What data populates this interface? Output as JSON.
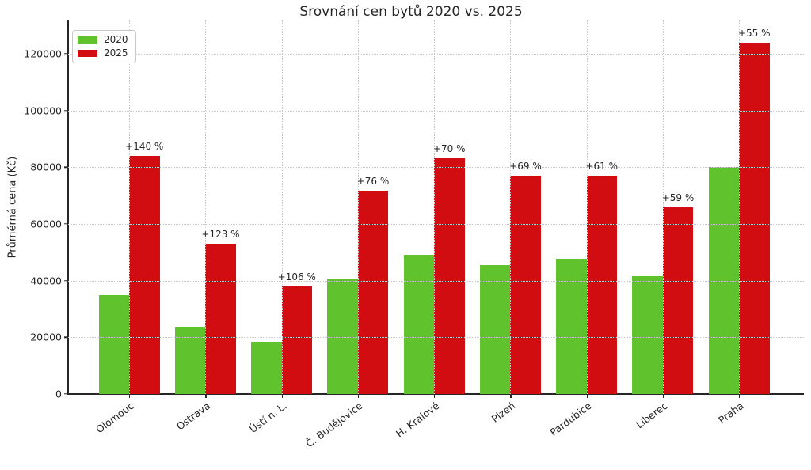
{
  "figure": {
    "title": "Srovnání cen bytů 2020 vs. 2025",
    "ylabel": "Průměrná cena (Kč)"
  },
  "legend": {
    "items": [
      {
        "label": "2020",
        "color": "#60c22d"
      },
      {
        "label": "2025",
        "color": "#d10d11"
      }
    ]
  },
  "chart_data": {
    "type": "bar",
    "title": "Srovnání cen bytů 2020 vs. 2025",
    "xlabel": "",
    "ylabel": "Průměrná cena (Kč)",
    "categories": [
      "Olomouc",
      "Ostrava",
      "Ústí n. L.",
      "Č. Budějovice",
      "H. Králové",
      "Plzeň",
      "Pardubice",
      "Liberec",
      "Praha"
    ],
    "series": [
      {
        "name": "2020",
        "color": "#60c22d",
        "values": [
          35000,
          23800,
          18400,
          40800,
          49000,
          45500,
          47800,
          41500,
          80000
        ]
      },
      {
        "name": "2025",
        "color": "#d10d11",
        "values": [
          84000,
          53000,
          37900,
          71800,
          83300,
          77000,
          77000,
          66000,
          124000
        ]
      }
    ],
    "annotations": [
      "+140 %",
      "+123 %",
      "+106 %",
      "+76 %",
      "+70 %",
      "+69 %",
      "+61 %",
      "+59 %",
      "+55 %"
    ],
    "ylim": [
      0,
      132000
    ],
    "yticks": [
      0,
      20000,
      40000,
      60000,
      80000,
      100000,
      120000
    ],
    "grid": true,
    "grid_style": "dotted",
    "legend_position": "upper left"
  }
}
